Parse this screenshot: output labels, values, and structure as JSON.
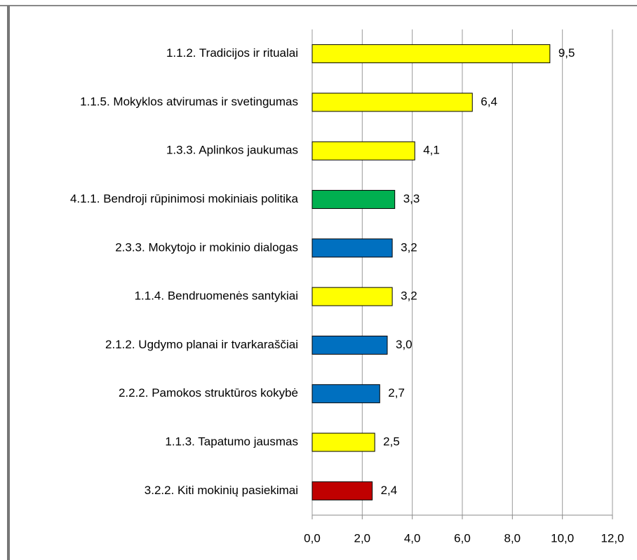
{
  "chart_data": {
    "type": "bar",
    "orientation": "horizontal",
    "categories": [
      "1.1.2. Tradicijos ir ritualai",
      "1.1.5. Mokyklos atvirumas ir svetingumas",
      "1.3.3. Aplinkos jaukumas",
      "4.1.1. Bendroji rūpinimosi mokiniais politika",
      "2.3.3. Mokytojo ir mokinio dialogas",
      "1.1.4. Bendruomenės  santykiai",
      "2.1.2. Ugdymo planai ir tvarkaraščiai",
      "2.2.2. Pamokos struktūros kokybė",
      "1.1.3. Tapatumo jausmas",
      "3.2.2. Kiti mokinių pasiekimai"
    ],
    "values": [
      9.5,
      6.4,
      4.1,
      3.3,
      3.2,
      3.2,
      3.0,
      2.7,
      2.5,
      2.4
    ],
    "value_labels": [
      "9,5",
      "6,4",
      "4,1",
      "3,3",
      "3,2",
      "3,2",
      "3,0",
      "2,7",
      "2,5",
      "2,4"
    ],
    "colors": [
      "#ffff00",
      "#ffff00",
      "#ffff00",
      "#00b050",
      "#0070c0",
      "#ffff00",
      "#0070c0",
      "#0070c0",
      "#ffff00",
      "#c00000"
    ],
    "xlim": [
      0,
      12
    ],
    "xticks": [
      {
        "value": 0,
        "label": "0,0"
      },
      {
        "value": 2,
        "label": "2,0"
      },
      {
        "value": 4,
        "label": "4,0"
      },
      {
        "value": 6,
        "label": "6,0"
      },
      {
        "value": 8,
        "label": "8,0"
      },
      {
        "value": 10,
        "label": "10,0"
      },
      {
        "value": 12,
        "label": "12,0"
      }
    ],
    "grid": true
  }
}
